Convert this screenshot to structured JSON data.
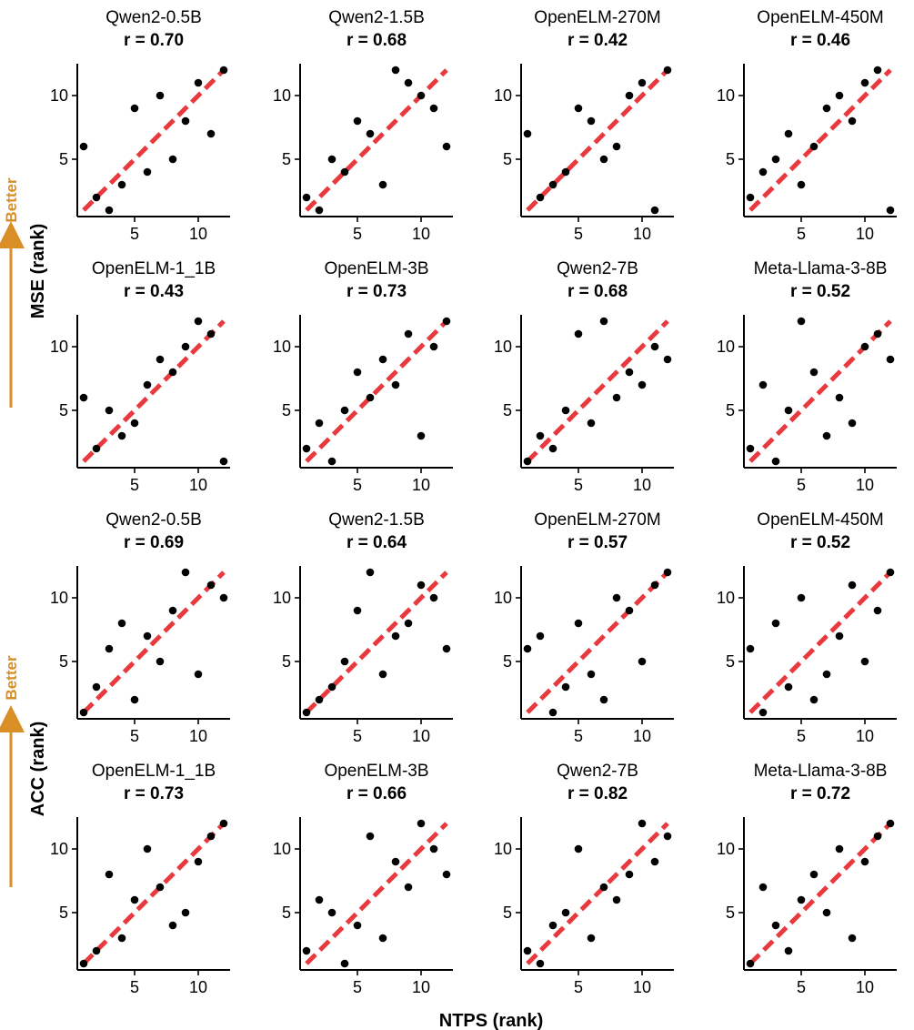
{
  "figure": {
    "x_label": "NTPS (rank)",
    "better_label": "Better",
    "colors": {
      "point": "#000000",
      "fit_line": "#e8393e",
      "better_arrow": "#d98e26",
      "axis": "#000000"
    }
  },
  "chart_data": [
    {
      "group": "MSE (rank)",
      "ylabel": "MSE (rank)",
      "xlabel": "NTPS (rank)",
      "type": "scatter",
      "xlim": [
        0.5,
        12.5
      ],
      "ylim": [
        0.5,
        12.5
      ],
      "xticks": [
        5,
        10
      ],
      "yticks": [
        5,
        10
      ],
      "grid": false,
      "fit_line": [
        [
          1,
          1
        ],
        [
          12,
          12
        ]
      ],
      "panels": [
        {
          "title": "Qwen2-0.5B",
          "r": "r = 0.70",
          "points": [
            [
              1,
              6
            ],
            [
              2,
              2
            ],
            [
              3,
              1
            ],
            [
              4,
              3
            ],
            [
              5,
              9
            ],
            [
              6,
              4
            ],
            [
              7,
              10
            ],
            [
              8,
              5
            ],
            [
              9,
              8
            ],
            [
              10,
              11
            ],
            [
              11,
              7
            ],
            [
              12,
              12
            ]
          ]
        },
        {
          "title": "Qwen2-1.5B",
          "r": "r = 0.68",
          "points": [
            [
              1,
              2
            ],
            [
              2,
              1
            ],
            [
              3,
              5
            ],
            [
              4,
              4
            ],
            [
              5,
              8
            ],
            [
              6,
              7
            ],
            [
              7,
              3
            ],
            [
              8,
              12
            ],
            [
              9,
              11
            ],
            [
              10,
              10
            ],
            [
              11,
              9
            ],
            [
              12,
              6
            ]
          ]
        },
        {
          "title": "OpenELM-270M",
          "r": "r = 0.42",
          "points": [
            [
              1,
              7
            ],
            [
              2,
              2
            ],
            [
              3,
              3
            ],
            [
              4,
              4
            ],
            [
              5,
              9
            ],
            [
              6,
              8
            ],
            [
              7,
              5
            ],
            [
              8,
              6
            ],
            [
              9,
              10
            ],
            [
              10,
              11
            ],
            [
              11,
              1
            ],
            [
              12,
              12
            ]
          ]
        },
        {
          "title": "OpenELM-450M",
          "r": "r = 0.46",
          "points": [
            [
              1,
              2
            ],
            [
              2,
              4
            ],
            [
              3,
              5
            ],
            [
              4,
              7
            ],
            [
              5,
              3
            ],
            [
              6,
              6
            ],
            [
              7,
              9
            ],
            [
              8,
              10
            ],
            [
              9,
              8
            ],
            [
              10,
              11
            ],
            [
              11,
              12
            ],
            [
              12,
              1
            ]
          ]
        },
        {
          "title": "OpenELM-1_1B",
          "r": "r = 0.43",
          "points": [
            [
              1,
              6
            ],
            [
              2,
              2
            ],
            [
              3,
              5
            ],
            [
              4,
              3
            ],
            [
              5,
              4
            ],
            [
              6,
              7
            ],
            [
              7,
              9
            ],
            [
              8,
              8
            ],
            [
              9,
              10
            ],
            [
              10,
              12
            ],
            [
              11,
              11
            ],
            [
              12,
              1
            ]
          ]
        },
        {
          "title": "OpenELM-3B",
          "r": "r = 0.73",
          "points": [
            [
              1,
              2
            ],
            [
              2,
              4
            ],
            [
              3,
              1
            ],
            [
              4,
              5
            ],
            [
              5,
              8
            ],
            [
              6,
              6
            ],
            [
              7,
              9
            ],
            [
              8,
              7
            ],
            [
              9,
              11
            ],
            [
              10,
              3
            ],
            [
              11,
              10
            ],
            [
              12,
              12
            ]
          ]
        },
        {
          "title": "Qwen2-7B",
          "r": "r = 0.68",
          "points": [
            [
              1,
              1
            ],
            [
              2,
              3
            ],
            [
              3,
              2
            ],
            [
              4,
              5
            ],
            [
              5,
              11
            ],
            [
              6,
              4
            ],
            [
              7,
              12
            ],
            [
              8,
              6
            ],
            [
              9,
              8
            ],
            [
              10,
              7
            ],
            [
              11,
              10
            ],
            [
              12,
              9
            ]
          ]
        },
        {
          "title": "Meta-Llama-3-8B",
          "r": "r = 0.52",
          "points": [
            [
              1,
              2
            ],
            [
              2,
              7
            ],
            [
              3,
              1
            ],
            [
              4,
              5
            ],
            [
              5,
              12
            ],
            [
              6,
              8
            ],
            [
              7,
              3
            ],
            [
              8,
              6
            ],
            [
              9,
              4
            ],
            [
              10,
              10
            ],
            [
              11,
              11
            ],
            [
              12,
              9
            ]
          ]
        }
      ]
    },
    {
      "group": "ACC (rank)",
      "ylabel": "ACC (rank)",
      "xlabel": "NTPS (rank)",
      "type": "scatter",
      "xlim": [
        0.5,
        12.5
      ],
      "ylim": [
        0.5,
        12.5
      ],
      "xticks": [
        5,
        10
      ],
      "yticks": [
        5,
        10
      ],
      "grid": false,
      "fit_line": [
        [
          1,
          1
        ],
        [
          12,
          12
        ]
      ],
      "panels": [
        {
          "title": "Qwen2-0.5B",
          "r": "r = 0.69",
          "points": [
            [
              1,
              1
            ],
            [
              2,
              3
            ],
            [
              3,
              6
            ],
            [
              4,
              8
            ],
            [
              5,
              2
            ],
            [
              6,
              7
            ],
            [
              7,
              5
            ],
            [
              8,
              9
            ],
            [
              9,
              12
            ],
            [
              10,
              4
            ],
            [
              11,
              11
            ],
            [
              12,
              10
            ]
          ]
        },
        {
          "title": "Qwen2-1.5B",
          "r": "r = 0.64",
          "points": [
            [
              1,
              1
            ],
            [
              2,
              2
            ],
            [
              3,
              3
            ],
            [
              4,
              5
            ],
            [
              5,
              9
            ],
            [
              6,
              12
            ],
            [
              7,
              4
            ],
            [
              8,
              7
            ],
            [
              9,
              8
            ],
            [
              10,
              11
            ],
            [
              11,
              10
            ],
            [
              12,
              6
            ]
          ]
        },
        {
          "title": "OpenELM-270M",
          "r": "r = 0.57",
          "points": [
            [
              1,
              6
            ],
            [
              2,
              7
            ],
            [
              3,
              1
            ],
            [
              4,
              3
            ],
            [
              5,
              8
            ],
            [
              6,
              4
            ],
            [
              7,
              2
            ],
            [
              8,
              10
            ],
            [
              9,
              9
            ],
            [
              10,
              5
            ],
            [
              11,
              11
            ],
            [
              12,
              12
            ]
          ]
        },
        {
          "title": "OpenELM-450M",
          "r": "r = 0.52",
          "points": [
            [
              1,
              6
            ],
            [
              2,
              1
            ],
            [
              3,
              8
            ],
            [
              4,
              3
            ],
            [
              5,
              10
            ],
            [
              6,
              2
            ],
            [
              7,
              4
            ],
            [
              8,
              7
            ],
            [
              9,
              11
            ],
            [
              10,
              5
            ],
            [
              11,
              9
            ],
            [
              12,
              12
            ]
          ]
        },
        {
          "title": "OpenELM-1_1B",
          "r": "r = 0.73",
          "points": [
            [
              1,
              1
            ],
            [
              2,
              2
            ],
            [
              3,
              8
            ],
            [
              4,
              3
            ],
            [
              5,
              6
            ],
            [
              6,
              10
            ],
            [
              7,
              7
            ],
            [
              8,
              4
            ],
            [
              9,
              5
            ],
            [
              10,
              9
            ],
            [
              11,
              11
            ],
            [
              12,
              12
            ]
          ]
        },
        {
          "title": "OpenELM-3B",
          "r": "r = 0.66",
          "points": [
            [
              1,
              2
            ],
            [
              2,
              6
            ],
            [
              3,
              5
            ],
            [
              4,
              1
            ],
            [
              5,
              4
            ],
            [
              6,
              11
            ],
            [
              7,
              3
            ],
            [
              8,
              9
            ],
            [
              9,
              7
            ],
            [
              10,
              12
            ],
            [
              11,
              10
            ],
            [
              12,
              8
            ]
          ]
        },
        {
          "title": "Qwen2-7B",
          "r": "r = 0.82",
          "points": [
            [
              1,
              2
            ],
            [
              2,
              1
            ],
            [
              3,
              4
            ],
            [
              4,
              5
            ],
            [
              5,
              10
            ],
            [
              6,
              3
            ],
            [
              7,
              7
            ],
            [
              8,
              6
            ],
            [
              9,
              8
            ],
            [
              10,
              12
            ],
            [
              11,
              9
            ],
            [
              12,
              11
            ]
          ]
        },
        {
          "title": "Meta-Llama-3-8B",
          "r": "r = 0.72",
          "points": [
            [
              1,
              1
            ],
            [
              2,
              7
            ],
            [
              3,
              4
            ],
            [
              4,
              2
            ],
            [
              5,
              6
            ],
            [
              6,
              8
            ],
            [
              7,
              5
            ],
            [
              8,
              10
            ],
            [
              9,
              3
            ],
            [
              10,
              9
            ],
            [
              11,
              11
            ],
            [
              12,
              12
            ]
          ]
        }
      ]
    }
  ]
}
